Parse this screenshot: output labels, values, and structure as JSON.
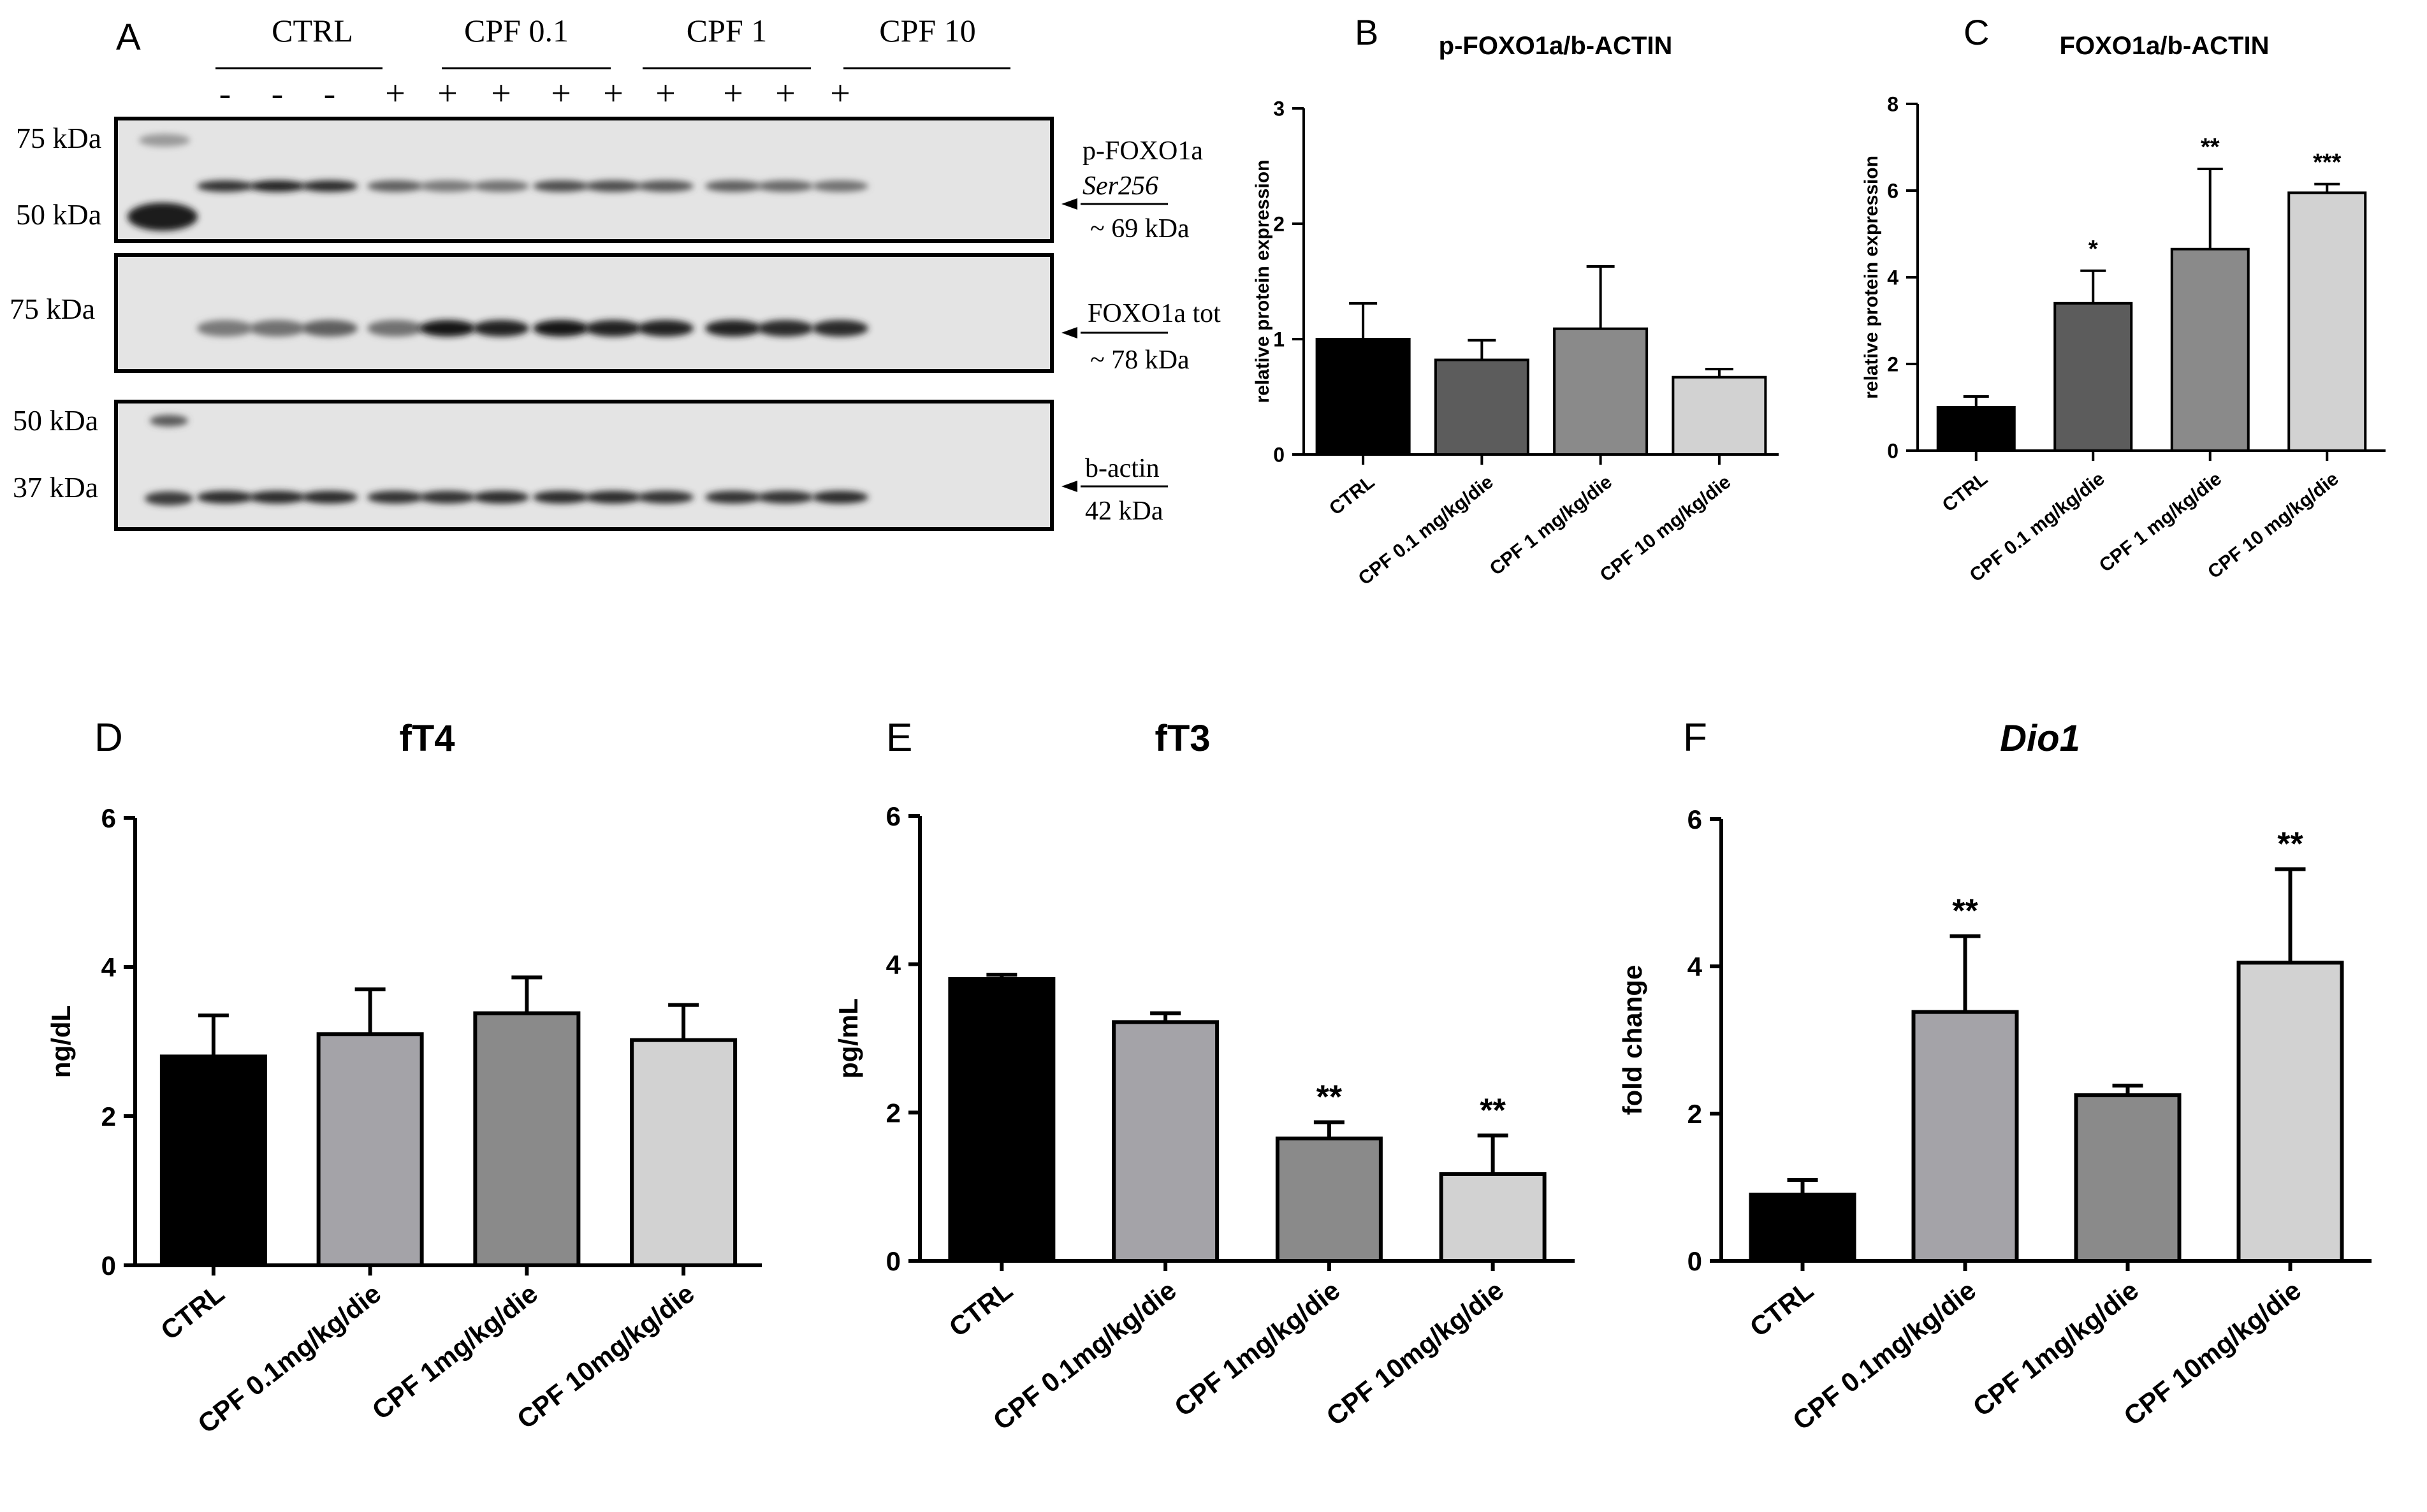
{
  "colors": {
    "black": "#000000",
    "ctrl_bar": "#000000",
    "dark_gray": "#5c5c5c",
    "mid_gray": "#8a8a8a",
    "light_gray": "#d2d2d2",
    "slate_gray": "#a4a3a8",
    "blot_bg": "#e4e4e4",
    "band": "#2a2a2a"
  },
  "panels": {
    "A": "A",
    "B": "B",
    "C": "C",
    "D": "D",
    "E": "E",
    "F": "F"
  },
  "blot": {
    "groups": [
      "CTRL",
      "CPF 0.1",
      "CPF 1",
      "CPF 10"
    ],
    "treatment_signs": [
      "-",
      "-",
      "-",
      "+",
      "+",
      "+",
      "+",
      "+",
      "+",
      "+",
      "+",
      "+"
    ],
    "markers": {
      "p_foxo_75": "75 kDa",
      "p_foxo_50": "50 kDa",
      "foxo_75": "75 kDa",
      "actin_50": "50 kDa",
      "actin_37": "37 kDa"
    },
    "labels": {
      "p_foxo_name": "p-FOXO1a",
      "p_foxo_site": "Ser256",
      "p_foxo_size": "~ 69 kDa",
      "foxo_name": "FOXO1a tot",
      "foxo_size": "~ 78 kDa",
      "actin_name": "b-actin",
      "actin_size": "42 kDa"
    },
    "band_intensity": {
      "p_foxo": [
        0.85,
        0.95,
        0.9,
        0.6,
        0.45,
        0.5,
        0.7,
        0.7,
        0.65,
        0.6,
        0.55,
        0.5
      ],
      "foxo": [
        0.45,
        0.5,
        0.6,
        0.5,
        1.0,
        0.95,
        1.0,
        0.95,
        0.95,
        0.95,
        0.9,
        0.9
      ],
      "actin": [
        0.9,
        0.9,
        0.9,
        0.85,
        0.85,
        0.9,
        0.9,
        0.9,
        0.85,
        0.85,
        0.85,
        0.9
      ]
    }
  },
  "chart_data": [
    {
      "id": "B",
      "type": "bar",
      "title": "p-FOXO1a/b-ACTIN",
      "ylabel": "relative protein expression",
      "ylim": [
        0,
        3
      ],
      "yticks": [
        "0",
        "1",
        "2",
        "3"
      ],
      "categories": [
        "CTRL",
        "CPF 0.1 mg/kg/die",
        "CPF 1 mg/kg/die",
        "CPF 10 mg/kg/die"
      ],
      "values": [
        1.0,
        0.82,
        1.09,
        0.67
      ],
      "errors": [
        0.31,
        0.17,
        0.54,
        0.07
      ],
      "significance": [
        "",
        "",
        "",
        ""
      ],
      "bar_colors": [
        "#000000",
        "#5c5c5c",
        "#8a8a8a",
        "#d2d2d2"
      ]
    },
    {
      "id": "C",
      "type": "bar",
      "title": "FOXO1a/b-ACTIN",
      "ylabel": "relative protein expression",
      "ylim": [
        0,
        8
      ],
      "yticks": [
        "0",
        "2",
        "4",
        "6",
        "8"
      ],
      "categories": [
        "CTRL",
        "CPF 0.1 mg/kg/die",
        "CPF 1 mg/kg/die",
        "CPF 10 mg/kg/die"
      ],
      "values": [
        1.0,
        3.4,
        4.65,
        5.95
      ],
      "errors": [
        0.25,
        0.75,
        1.85,
        0.2
      ],
      "significance": [
        "",
        "*",
        "**",
        "***"
      ],
      "bar_colors": [
        "#000000",
        "#5c5c5c",
        "#8a8a8a",
        "#d2d2d2"
      ]
    },
    {
      "id": "D",
      "type": "bar",
      "title": "fT4",
      "ylabel": "ng/dL",
      "ylim": [
        0,
        6
      ],
      "yticks": [
        "0",
        "2",
        "4",
        "6"
      ],
      "categories": [
        "CTRL",
        "CPF 0.1mg/kg/die",
        "CPF 1mg/kg/die",
        "CPF 10mg/kg/die"
      ],
      "values": [
        2.8,
        3.1,
        3.38,
        3.02
      ],
      "errors": [
        0.55,
        0.6,
        0.48,
        0.47
      ],
      "significance": [
        "",
        "",
        "",
        ""
      ],
      "bar_colors": [
        "#000000",
        "#a4a3a8",
        "#8a8a8a",
        "#d2d2d2"
      ]
    },
    {
      "id": "E",
      "type": "bar",
      "title": "fT3",
      "ylabel": "pg/mL",
      "ylim": [
        0,
        6
      ],
      "yticks": [
        "0",
        "2",
        "4",
        "6"
      ],
      "categories": [
        "CTRL",
        "CPF 0.1mg/kg/die",
        "CPF 1mg/kg/die",
        "CPF 10mg/kg/die"
      ],
      "values": [
        3.8,
        3.22,
        1.65,
        1.17
      ],
      "errors": [
        0.06,
        0.12,
        0.22,
        0.52
      ],
      "significance": [
        "",
        "",
        "**",
        "**"
      ],
      "bar_colors": [
        "#000000",
        "#a4a3a8",
        "#8a8a8a",
        "#d2d2d2"
      ]
    },
    {
      "id": "F",
      "type": "bar",
      "title": "Dio1",
      "title_italic": true,
      "ylabel": "fold change",
      "ylim": [
        0,
        6
      ],
      "yticks": [
        "0",
        "2",
        "4",
        "6"
      ],
      "categories": [
        "CTRL",
        "CPF 0.1mg/kg/die",
        "CPF 1mg/kg/die",
        "CPF 10mg/kg/die"
      ],
      "values": [
        0.9,
        3.38,
        2.25,
        4.05
      ],
      "errors": [
        0.2,
        1.03,
        0.13,
        1.27
      ],
      "significance": [
        "",
        "**",
        "",
        "**"
      ],
      "bar_colors": [
        "#000000",
        "#a4a3a8",
        "#8a8a8a",
        "#d2d2d2"
      ]
    }
  ]
}
